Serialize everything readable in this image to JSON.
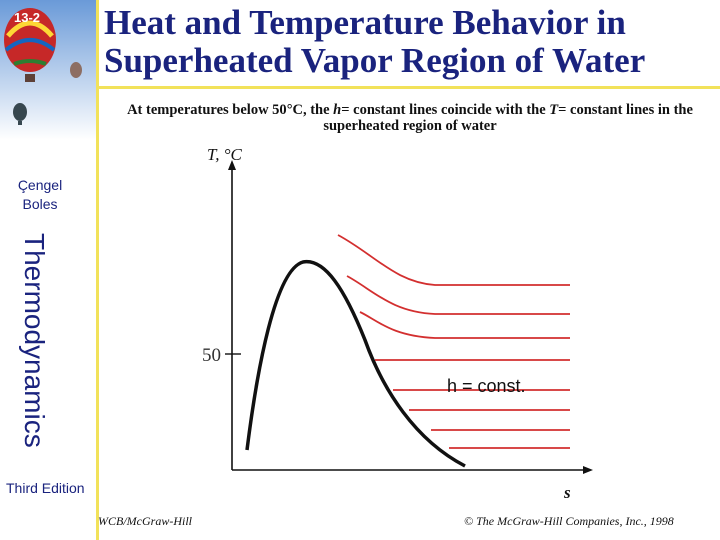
{
  "slide": {
    "number": "13-2",
    "title": "Heat and Temperature Behavior in Superheated Vapor Region of Water"
  },
  "sidebar": {
    "author": "Çengel\nBoles",
    "subject": "Thermodynamics",
    "edition": "Third Edition"
  },
  "caption": {
    "part1": "At temperatures below 50",
    "part2": "°C, the ",
    "h": "h",
    "part3": "= constant lines coincide with the ",
    "T": "T",
    "part4": "= constant lines in the superheated region of water"
  },
  "diagram": {
    "y_axis_label": "T, °C",
    "x_axis_label": "s",
    "tick_label": "50",
    "curve_label": "h = const.",
    "line_color": "#d32f2f"
  },
  "footer": {
    "publisher": "WCB/McGraw-Hill",
    "copyright": "© The McGraw-Hill Companies, Inc., 1998"
  }
}
